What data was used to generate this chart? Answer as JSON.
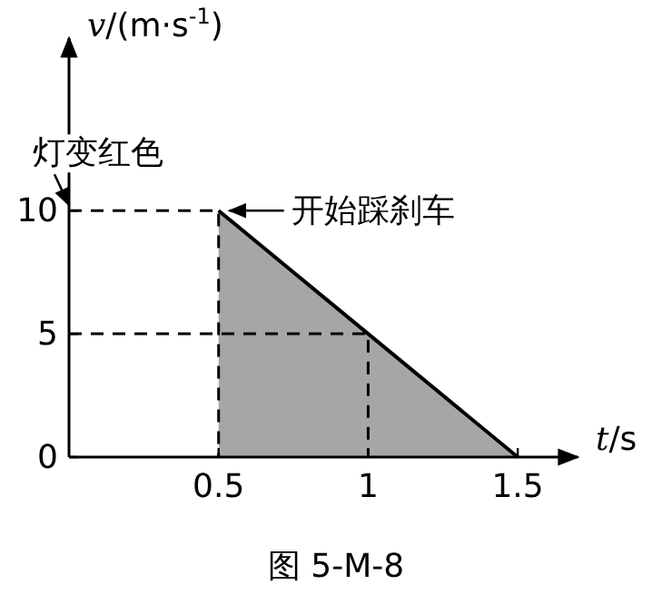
{
  "chart_data": {
    "type": "area",
    "xlabel": "*t*/s",
    "ylabel": "*v*/(m·s$^{-1}$)",
    "xlim": [
      0,
      1.7
    ],
    "ylim": [
      0,
      17
    ],
    "xticks": [
      0.5,
      1,
      1.5
    ],
    "yticks": [
      0,
      5,
      10
    ],
    "series": [
      {
        "color": "#a6a6a6",
        "x": [
          0.5,
          1,
          1.5
        ],
        "values": [
          10,
          5,
          0
        ]
      },
      {
        "type": "line",
        "line_style": "dashed",
        "color": "#000000",
        "x": [
          0,
          0.5,
          0.5
        ],
        "values": [
          10,
          10,
          0
        ]
      },
      {
        "type": "line",
        "line_style": "dashed",
        "color": "#000000",
        "x": [
          0,
          1,
          1
        ],
        "values": [
          5,
          5,
          0
        ]
      }
    ],
    "annotations": [
      {
        "text": "灯变红色",
        "x": 0,
        "y": 10
      },
      {
        "text": "开始踩刹车",
        "x": 0.5,
        "y": 10
      },
      "图 5-M-8"
    ]
  }
}
